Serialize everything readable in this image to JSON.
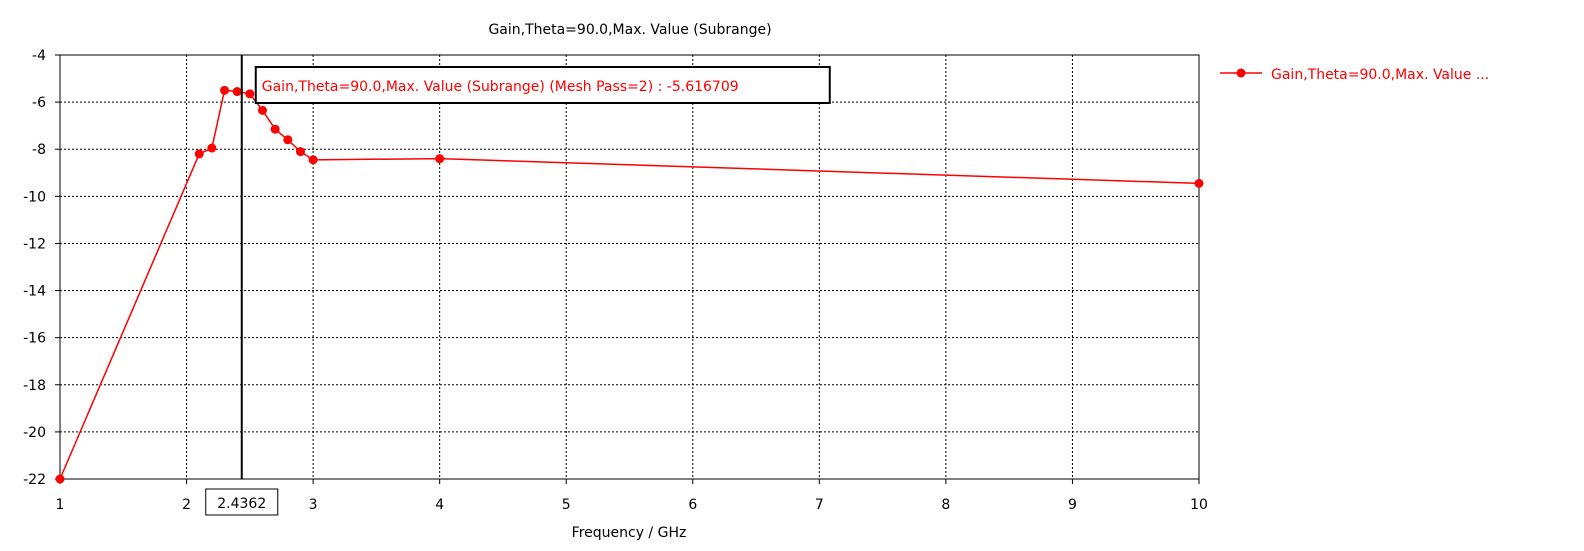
{
  "chart_data": {
    "type": "line",
    "title": "Gain,Theta=90.0,Max. Value (Subrange)",
    "xlabel": "Frequency / GHz",
    "ylabel": "",
    "xlim": [
      1,
      10
    ],
    "ylim": [
      -22,
      -4
    ],
    "x_ticks": [
      1,
      2,
      3,
      4,
      5,
      6,
      7,
      8,
      9,
      10
    ],
    "y_ticks": [
      -4,
      -6,
      -8,
      -10,
      -12,
      -14,
      -16,
      -18,
      -20,
      -22
    ],
    "grid": true,
    "series": [
      {
        "name": "Gain,Theta=90.0,Max. Value ...",
        "color": "#ff0000",
        "marker": "circle",
        "x": [
          1,
          2.1,
          2.2,
          2.3,
          2.4,
          2.5,
          2.6,
          2.7,
          2.8,
          2.9,
          3.0,
          4.0,
          10.0
        ],
        "y": [
          -22.0,
          -8.2,
          -7.95,
          -5.5,
          -5.55,
          -5.65,
          -6.35,
          -7.15,
          -7.6,
          -8.1,
          -8.45,
          -8.4,
          -9.45
        ],
        "point_markers": [
          true,
          true,
          true,
          true,
          true,
          true,
          true,
          true,
          true,
          true,
          true,
          true,
          true
        ]
      }
    ],
    "cursor": {
      "x": 2.4362,
      "x_label": "2.4362",
      "tooltip": "Gain,Theta=90.0,Max. Value (Subrange) (Mesh Pass=2) : -5.616709"
    },
    "legend_position": "top-right-outside"
  },
  "colors": {
    "series": "#ff0000",
    "grid": "#000000",
    "axis": "#000000",
    "cursor": "#000000"
  }
}
